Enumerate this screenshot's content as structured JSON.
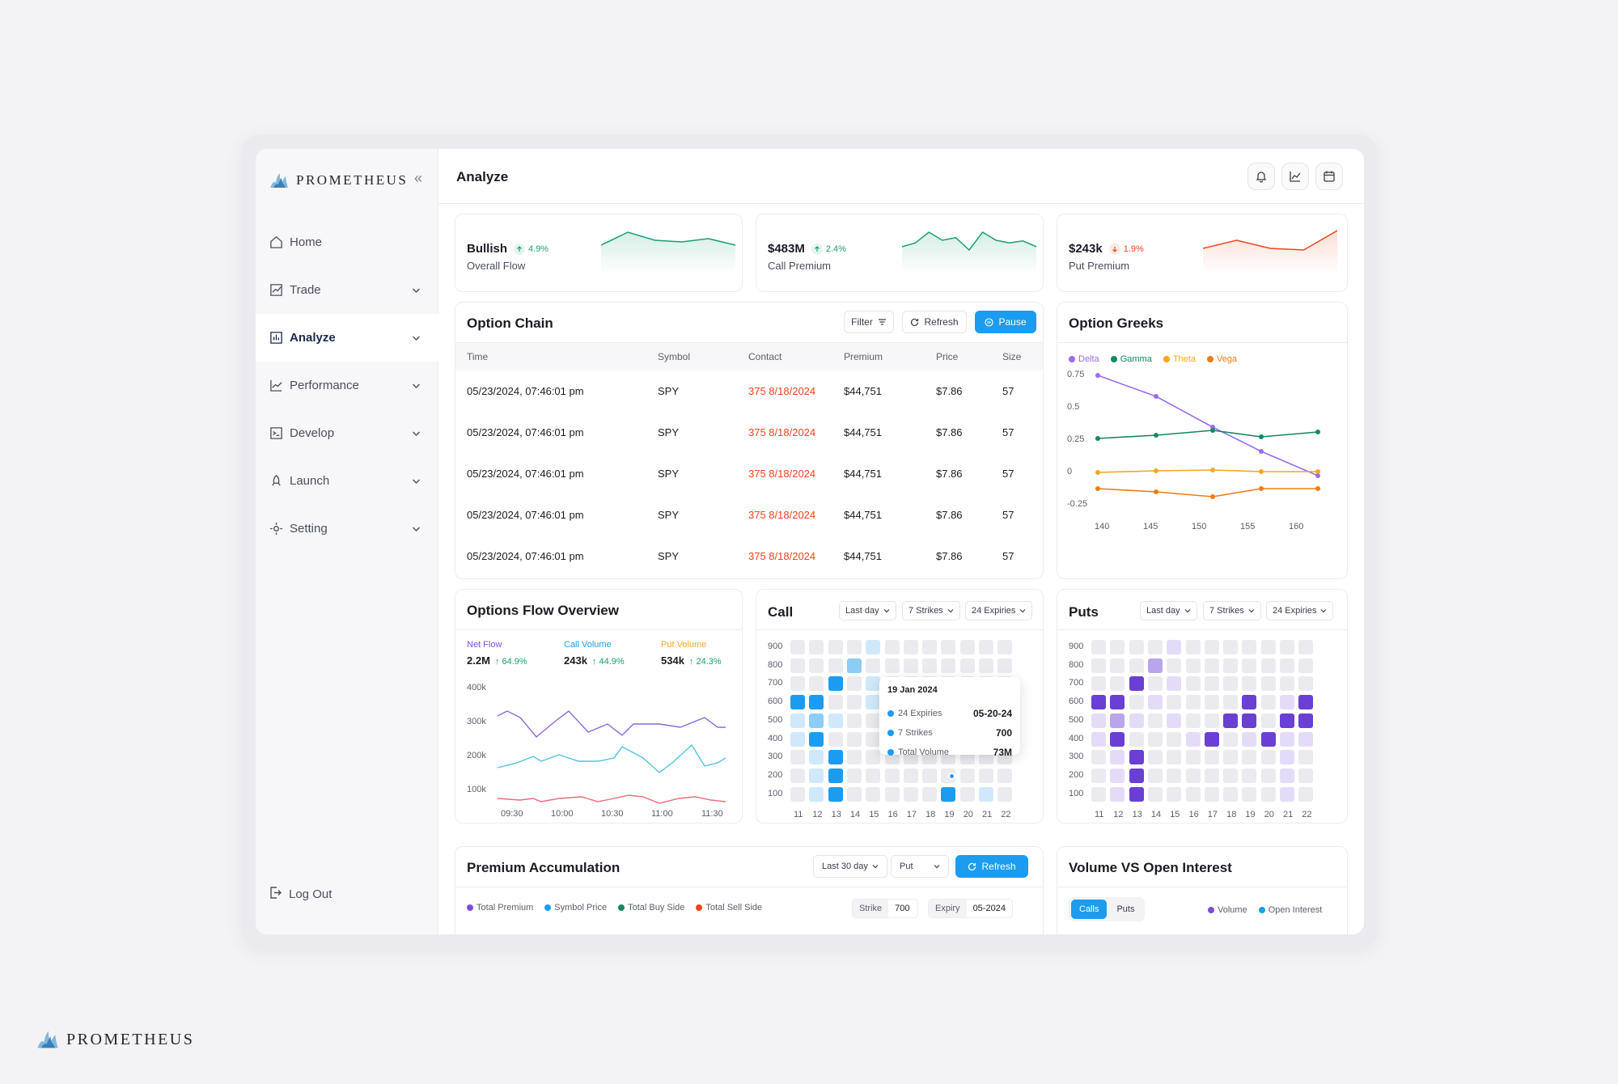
{
  "brand": "PROMETHEUS",
  "sidebar": {
    "items": [
      {
        "label": "Home",
        "icon": "home-icon",
        "chevron": false,
        "active": false
      },
      {
        "label": "Trade",
        "icon": "trade-icon",
        "chevron": true,
        "active": false
      },
      {
        "label": "Analyze",
        "icon": "analyze-icon",
        "chevron": true,
        "active": true
      },
      {
        "label": "Performance",
        "icon": "performance-icon",
        "chevron": true,
        "active": false
      },
      {
        "label": "Develop",
        "icon": "develop-icon",
        "chevron": true,
        "active": false
      },
      {
        "label": "Launch",
        "icon": "launch-icon",
        "chevron": true,
        "active": false
      },
      {
        "label": "Setting",
        "icon": "setting-icon",
        "chevron": true,
        "active": false
      }
    ],
    "logout": "Log Out"
  },
  "header": {
    "title": "Analyze"
  },
  "kpis": [
    {
      "value": "Bullish",
      "change": "4.9%",
      "direction": "up",
      "label": "Overall Flow",
      "color": "#1a9e76",
      "spark": [
        0.45,
        0.05,
        0.3,
        0.35,
        0.25,
        0.45
      ]
    },
    {
      "value": "$483M",
      "change": "2.4%",
      "direction": "up",
      "label": "Call Premium",
      "color": "#1a9e76",
      "spark": [
        0.5,
        0.38,
        0.05,
        0.3,
        0.22,
        0.6,
        0.05,
        0.3,
        0.38,
        0.32,
        0.5
      ]
    },
    {
      "value": "$243k",
      "change": "1.9%",
      "direction": "down",
      "label": "Put Premium",
      "color": "#f0441c",
      "spark": [
        0.55,
        0.3,
        0.55,
        0.6,
        0.0
      ]
    }
  ],
  "option_chain": {
    "title": "Option Chain",
    "buttons": {
      "filter": "Filter",
      "refresh": "Refresh",
      "pause": "Pause"
    },
    "columns": [
      "Time",
      "Symbol",
      "Contact",
      "Premium",
      "Price",
      "Size"
    ],
    "rows": [
      [
        "05/23/2024, 07:46:01 pm",
        "SPY",
        "375 8/18/2024",
        "$44,751",
        "$7.86",
        "57"
      ],
      [
        "05/23/2024, 07:46:01 pm",
        "SPY",
        "375 8/18/2024",
        "$44,751",
        "$7.86",
        "57"
      ],
      [
        "05/23/2024, 07:46:01 pm",
        "SPY",
        "375 8/18/2024",
        "$44,751",
        "$7.86",
        "57"
      ],
      [
        "05/23/2024, 07:46:01 pm",
        "SPY",
        "375 8/18/2024",
        "$44,751",
        "$7.86",
        "57"
      ],
      [
        "05/23/2024, 07:46:01 pm",
        "SPY",
        "375 8/18/2024",
        "$44,751",
        "$7.86",
        "57"
      ]
    ]
  },
  "greeks": {
    "title": "Option Greeks",
    "legend": [
      {
        "name": "Delta",
        "color": "#9b6cf0"
      },
      {
        "name": "Gamma",
        "color": "#138a5f"
      },
      {
        "name": "Theta",
        "color": "#f5a623"
      },
      {
        "name": "Vega",
        "color": "#f07c12"
      }
    ],
    "y_ticks": [
      "0.75",
      "0.5",
      "0.25",
      "0",
      "-0.25"
    ],
    "x_ticks": [
      "140",
      "145",
      "150",
      "155",
      "160"
    ]
  },
  "flow": {
    "title": "Options Flow Overview",
    "metrics": [
      {
        "label": "Net Flow",
        "value": "2.2M",
        "change": "64.9%",
        "color": "#7c4ddb"
      },
      {
        "label": "Call Volume",
        "value": "243k",
        "change": "44.9%",
        "color": "#1c9cf0"
      },
      {
        "label": "Put Volume",
        "value": "534k",
        "change": "24.3%",
        "color": "#f5a623"
      }
    ],
    "y_ticks": [
      "400k",
      "300k",
      "200k",
      "100k"
    ],
    "x_ticks": [
      "09:30",
      "10:00",
      "10:30",
      "11:00",
      "11:30"
    ]
  },
  "call": {
    "title": "Call",
    "filters": [
      "Last day",
      "7 Strikes",
      "24 Expiries"
    ],
    "y_ticks": [
      "900",
      "800",
      "700",
      "600",
      "500",
      "400",
      "300",
      "200",
      "100"
    ],
    "x_ticks": [
      "11",
      "12",
      "13",
      "14",
      "15",
      "16",
      "17",
      "18",
      "19",
      "20",
      "21",
      "22"
    ],
    "tooltip": {
      "date": "19 Jan 2024",
      "rows": [
        {
          "label": "24 Expiries",
          "value": "05-20-24"
        },
        {
          "label": "7 Strikes",
          "value": "700"
        },
        {
          "label": "Total Volume",
          "value": "73M"
        }
      ]
    }
  },
  "puts": {
    "title": "Puts",
    "filters": [
      "Last day",
      "7 Strikes",
      "24 Expiries"
    ],
    "y_ticks": [
      "900",
      "800",
      "700",
      "600",
      "500",
      "400",
      "300",
      "200",
      "100"
    ],
    "x_ticks": [
      "11",
      "12",
      "13",
      "14",
      "15",
      "16",
      "17",
      "18",
      "19",
      "20",
      "21",
      "22"
    ]
  },
  "premium": {
    "title": "Premium Accumulation",
    "range": "Last 30 day",
    "type": "Put",
    "refresh": "Refresh",
    "legend": [
      {
        "name": "Total Premium",
        "color": "#7c4ddb"
      },
      {
        "name": "Symbol Price",
        "color": "#1c9cf0"
      },
      {
        "name": "Total Buy Side",
        "color": "#138a5f"
      },
      {
        "name": "Total Sell Side",
        "color": "#f0441c"
      }
    ],
    "strike_label": "Strike",
    "strike_value": "700",
    "expiry_label": "Expiry",
    "expiry_value": "05-2024"
  },
  "volume_oi": {
    "title": "Volume VS Open Interest",
    "tabs": [
      "Calls",
      "Puts"
    ],
    "legend": [
      {
        "name": "Volume",
        "color": "#7c4ddb"
      },
      {
        "name": "Open Interest",
        "color": "#1c9cf0"
      }
    ]
  }
}
